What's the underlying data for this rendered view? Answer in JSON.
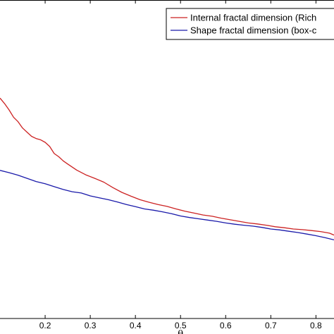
{
  "chart_data": {
    "type": "line",
    "xlabel": "θ",
    "xlim": [
      0.1,
      0.84
    ],
    "ylim": [
      0,
      1
    ],
    "xticks": [
      {
        "value": 0.2,
        "label": "0.2"
      },
      {
        "value": 0.3,
        "label": "0.3"
      },
      {
        "value": 0.4,
        "label": "0.4"
      },
      {
        "value": 0.5,
        "label": "0.5"
      },
      {
        "value": 0.6,
        "label": "0.6"
      },
      {
        "value": 0.7,
        "label": "0.7"
      },
      {
        "value": 0.8,
        "label": "0.8"
      }
    ],
    "grid": false,
    "legend_position": "top-right",
    "series": [
      {
        "name": "Internal fractal dimension (Rich",
        "color": "#cc2222",
        "x": [
          0.1,
          0.11,
          0.12,
          0.13,
          0.14,
          0.15,
          0.16,
          0.17,
          0.18,
          0.19,
          0.2,
          0.21,
          0.22,
          0.23,
          0.24,
          0.25,
          0.27,
          0.29,
          0.31,
          0.33,
          0.35,
          0.37,
          0.39,
          0.41,
          0.43,
          0.45,
          0.47,
          0.49,
          0.51,
          0.53,
          0.55,
          0.57,
          0.59,
          0.61,
          0.63,
          0.65,
          0.67,
          0.69,
          0.71,
          0.73,
          0.75,
          0.77,
          0.79,
          0.81,
          0.83,
          0.84
        ],
        "y": [
          0.692,
          0.675,
          0.655,
          0.632,
          0.618,
          0.598,
          0.585,
          0.572,
          0.565,
          0.561,
          0.553,
          0.54,
          0.518,
          0.508,
          0.495,
          0.485,
          0.466,
          0.451,
          0.44,
          0.428,
          0.411,
          0.396,
          0.384,
          0.373,
          0.365,
          0.358,
          0.352,
          0.344,
          0.337,
          0.331,
          0.325,
          0.321,
          0.315,
          0.31,
          0.305,
          0.3,
          0.297,
          0.293,
          0.288,
          0.285,
          0.281,
          0.279,
          0.276,
          0.273,
          0.268,
          0.262
        ]
      },
      {
        "name": "Shape fractal dimension (box-c",
        "color": "#1a1aaa",
        "x": [
          0.1,
          0.12,
          0.14,
          0.16,
          0.18,
          0.2,
          0.22,
          0.24,
          0.26,
          0.28,
          0.3,
          0.32,
          0.34,
          0.36,
          0.38,
          0.4,
          0.42,
          0.44,
          0.46,
          0.48,
          0.5,
          0.52,
          0.54,
          0.56,
          0.58,
          0.6,
          0.62,
          0.64,
          0.66,
          0.68,
          0.7,
          0.72,
          0.74,
          0.76,
          0.78,
          0.8,
          0.82,
          0.84
        ],
        "y": [
          0.465,
          0.458,
          0.45,
          0.44,
          0.43,
          0.423,
          0.414,
          0.405,
          0.398,
          0.394,
          0.385,
          0.379,
          0.373,
          0.366,
          0.358,
          0.351,
          0.344,
          0.34,
          0.335,
          0.329,
          0.322,
          0.317,
          0.313,
          0.309,
          0.305,
          0.3,
          0.296,
          0.293,
          0.29,
          0.286,
          0.281,
          0.278,
          0.274,
          0.27,
          0.265,
          0.26,
          0.254,
          0.247
        ]
      }
    ]
  }
}
